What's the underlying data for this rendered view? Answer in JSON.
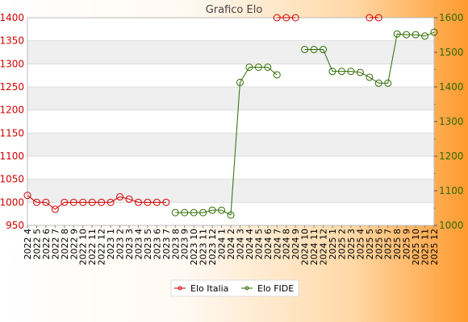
{
  "chart_data": {
    "type": "line",
    "title": "Grafico Elo",
    "x": [
      "2022 4",
      "2022 5",
      "2022 6",
      "2022 7",
      "2022 8",
      "2022 9",
      "2022 10",
      "2022 11",
      "2022 12",
      "2023 1",
      "2023 2",
      "2023 3",
      "2023 4",
      "2023 5",
      "2023 6",
      "2023 7",
      "2023 8",
      "2023 9",
      "2023 10",
      "2023 11",
      "2023 12",
      "2024 1",
      "2024 2",
      "2024 3",
      "2024 4",
      "2024 5",
      "2024 6",
      "2024 7",
      "2024 8",
      "2024 9",
      "2024 10",
      "2024 11",
      "2024 12",
      "2025 1",
      "2025 2",
      "2025 3",
      "2025 4",
      "2025 5",
      "2025 6",
      "2025 7",
      "2025 8",
      "2025 9",
      "2025 10",
      "2025 11",
      "2025 12"
    ],
    "y_left": {
      "min": 950,
      "max": 1400,
      "ticks": [
        950,
        1000,
        1050,
        1100,
        1150,
        1200,
        1250,
        1300,
        1350,
        1400
      ]
    },
    "y_right": {
      "min": 1000,
      "max": 1600,
      "ticks": [
        1000,
        1100,
        1200,
        1300,
        1400,
        1500,
        1600
      ]
    },
    "series": [
      {
        "name": "Elo Italia",
        "axis": "left",
        "color": "#d00000",
        "values": [
          1015,
          1000,
          1000,
          985,
          1000,
          1000,
          1000,
          1000,
          1000,
          1000,
          1012,
          1007,
          1000,
          1000,
          1000,
          1000,
          null,
          null,
          null,
          null,
          null,
          null,
          null,
          null,
          null,
          null,
          null,
          1400,
          1400,
          1400,
          null,
          null,
          null,
          null,
          null,
          null,
          null,
          1400,
          1400,
          null,
          null,
          null,
          null,
          null,
          null
        ]
      },
      {
        "name": "Elo FIDE",
        "axis": "right",
        "color": "#2e6b00",
        "values": [
          null,
          null,
          null,
          null,
          null,
          null,
          null,
          null,
          null,
          null,
          null,
          null,
          null,
          null,
          null,
          null,
          1037,
          1037,
          1037,
          1037,
          1044,
          1044,
          1030,
          1413,
          1457,
          1457,
          1457,
          1435,
          null,
          null,
          1508,
          1508,
          1508,
          1445,
          1445,
          1445,
          1442,
          1428,
          1411,
          1411,
          1553,
          1551,
          1551,
          1547,
          1558
        ]
      }
    ],
    "legend_position": "bottom-center",
    "grid": true
  }
}
